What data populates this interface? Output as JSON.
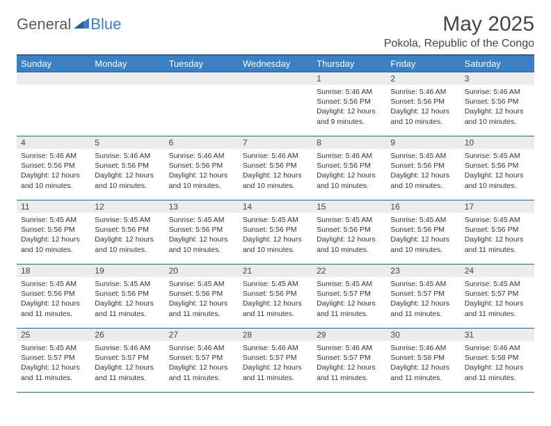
{
  "brand": {
    "part1": "General",
    "part2": "Blue"
  },
  "title": "May 2025",
  "location": "Pokola, Republic of the Congo",
  "colors": {
    "header_bg": "#3b7fc4",
    "header_border": "#2a5d94",
    "daynum_bg": "#ececec",
    "text": "#333333"
  },
  "day_labels": [
    "Sunday",
    "Monday",
    "Tuesday",
    "Wednesday",
    "Thursday",
    "Friday",
    "Saturday"
  ],
  "weeks": [
    [
      null,
      null,
      null,
      null,
      {
        "n": "1",
        "sr": "5:46 AM",
        "ss": "5:56 PM",
        "dl": "12 hours and 9 minutes."
      },
      {
        "n": "2",
        "sr": "5:46 AM",
        "ss": "5:56 PM",
        "dl": "12 hours and 10 minutes."
      },
      {
        "n": "3",
        "sr": "5:46 AM",
        "ss": "5:56 PM",
        "dl": "12 hours and 10 minutes."
      }
    ],
    [
      {
        "n": "4",
        "sr": "5:46 AM",
        "ss": "5:56 PM",
        "dl": "12 hours and 10 minutes."
      },
      {
        "n": "5",
        "sr": "5:46 AM",
        "ss": "5:56 PM",
        "dl": "12 hours and 10 minutes."
      },
      {
        "n": "6",
        "sr": "5:46 AM",
        "ss": "5:56 PM",
        "dl": "12 hours and 10 minutes."
      },
      {
        "n": "7",
        "sr": "5:46 AM",
        "ss": "5:56 PM",
        "dl": "12 hours and 10 minutes."
      },
      {
        "n": "8",
        "sr": "5:46 AM",
        "ss": "5:56 PM",
        "dl": "12 hours and 10 minutes."
      },
      {
        "n": "9",
        "sr": "5:45 AM",
        "ss": "5:56 PM",
        "dl": "12 hours and 10 minutes."
      },
      {
        "n": "10",
        "sr": "5:45 AM",
        "ss": "5:56 PM",
        "dl": "12 hours and 10 minutes."
      }
    ],
    [
      {
        "n": "11",
        "sr": "5:45 AM",
        "ss": "5:56 PM",
        "dl": "12 hours and 10 minutes."
      },
      {
        "n": "12",
        "sr": "5:45 AM",
        "ss": "5:56 PM",
        "dl": "12 hours and 10 minutes."
      },
      {
        "n": "13",
        "sr": "5:45 AM",
        "ss": "5:56 PM",
        "dl": "12 hours and 10 minutes."
      },
      {
        "n": "14",
        "sr": "5:45 AM",
        "ss": "5:56 PM",
        "dl": "12 hours and 10 minutes."
      },
      {
        "n": "15",
        "sr": "5:45 AM",
        "ss": "5:56 PM",
        "dl": "12 hours and 10 minutes."
      },
      {
        "n": "16",
        "sr": "5:45 AM",
        "ss": "5:56 PM",
        "dl": "12 hours and 10 minutes."
      },
      {
        "n": "17",
        "sr": "5:45 AM",
        "ss": "5:56 PM",
        "dl": "12 hours and 11 minutes."
      }
    ],
    [
      {
        "n": "18",
        "sr": "5:45 AM",
        "ss": "5:56 PM",
        "dl": "12 hours and 11 minutes."
      },
      {
        "n": "19",
        "sr": "5:45 AM",
        "ss": "5:56 PM",
        "dl": "12 hours and 11 minutes."
      },
      {
        "n": "20",
        "sr": "5:45 AM",
        "ss": "5:56 PM",
        "dl": "12 hours and 11 minutes."
      },
      {
        "n": "21",
        "sr": "5:45 AM",
        "ss": "5:56 PM",
        "dl": "12 hours and 11 minutes."
      },
      {
        "n": "22",
        "sr": "5:45 AM",
        "ss": "5:57 PM",
        "dl": "12 hours and 11 minutes."
      },
      {
        "n": "23",
        "sr": "5:45 AM",
        "ss": "5:57 PM",
        "dl": "12 hours and 11 minutes."
      },
      {
        "n": "24",
        "sr": "5:45 AM",
        "ss": "5:57 PM",
        "dl": "12 hours and 11 minutes."
      }
    ],
    [
      {
        "n": "25",
        "sr": "5:45 AM",
        "ss": "5:57 PM",
        "dl": "12 hours and 11 minutes."
      },
      {
        "n": "26",
        "sr": "5:46 AM",
        "ss": "5:57 PM",
        "dl": "12 hours and 11 minutes."
      },
      {
        "n": "27",
        "sr": "5:46 AM",
        "ss": "5:57 PM",
        "dl": "12 hours and 11 minutes."
      },
      {
        "n": "28",
        "sr": "5:46 AM",
        "ss": "5:57 PM",
        "dl": "12 hours and 11 minutes."
      },
      {
        "n": "29",
        "sr": "5:46 AM",
        "ss": "5:57 PM",
        "dl": "12 hours and 11 minutes."
      },
      {
        "n": "30",
        "sr": "5:46 AM",
        "ss": "5:58 PM",
        "dl": "12 hours and 11 minutes."
      },
      {
        "n": "31",
        "sr": "5:46 AM",
        "ss": "5:58 PM",
        "dl": "12 hours and 11 minutes."
      }
    ]
  ],
  "labels": {
    "sunrise": "Sunrise:",
    "sunset": "Sunset:",
    "daylight": "Daylight:"
  }
}
